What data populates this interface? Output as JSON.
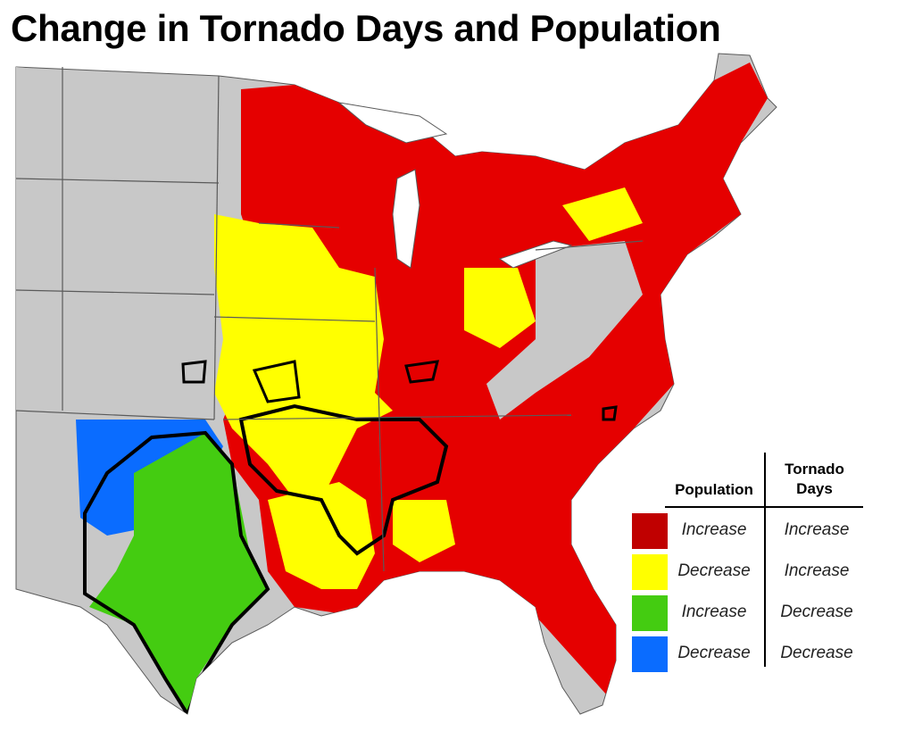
{
  "title": "Change in Tornado Days and Population",
  "colors": {
    "increase_increase": "#e50000",
    "decrease_increase": "#ffff00",
    "increase_decrease": "#44cc11",
    "decrease_decrease": "#0a6cff",
    "no_data": "#c8c8c8",
    "border": "#5a5a5a",
    "outline": "#000000"
  },
  "legend": {
    "population_header": "Population",
    "tornado_header": "Tornado Days",
    "rows": [
      {
        "population": "Increase",
        "tornado_days": "Increase",
        "color_key": "increase_increase"
      },
      {
        "population": "Decrease",
        "tornado_days": "Increase",
        "color_key": "decrease_increase"
      },
      {
        "population": "Increase",
        "tornado_days": "Decrease",
        "color_key": "increase_decrease"
      },
      {
        "population": "Decrease",
        "tornado_days": "Decrease",
        "color_key": "decrease_decrease"
      }
    ]
  },
  "map": {
    "region": "Eastern and central United States (county level)",
    "dominant_pattern": {
      "southeast_midwest_northeast": "Increase / Increase",
      "central_plains_iowa_illinois": "Decrease / Increase",
      "texas_central_oklahoma": "Increase / Decrease",
      "west_texas_oklahoma_panhandle": "Decrease / Decrease"
    }
  }
}
